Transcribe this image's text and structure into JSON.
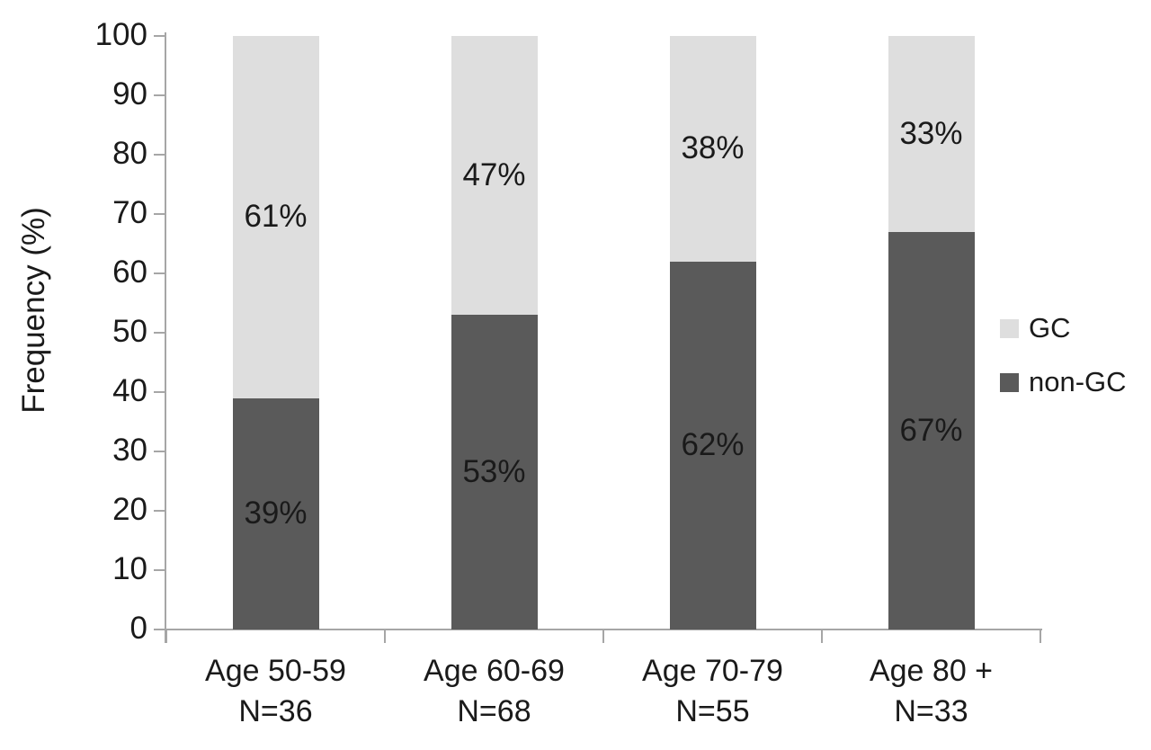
{
  "chart_data": {
    "type": "bar",
    "stacked": true,
    "title": "",
    "ylabel": "Frequency (%)",
    "xlabel": "",
    "ylim": [
      0,
      100
    ],
    "yticks": [
      0,
      10,
      20,
      30,
      40,
      50,
      60,
      70,
      80,
      90,
      100
    ],
    "grid": false,
    "value_suffix": "%",
    "categories": [
      {
        "label": "Age 50-59",
        "sublabel": "N=36"
      },
      {
        "label": "Age 60-69",
        "sublabel": "N=68"
      },
      {
        "label": "Age 70-79",
        "sublabel": "N=55"
      },
      {
        "label": "Age 80 +",
        "sublabel": "N=33"
      }
    ],
    "series": [
      {
        "name": "GC",
        "color": "#dedede",
        "values": [
          61,
          47,
          38,
          33
        ]
      },
      {
        "name": "non-GC",
        "color": "#5a5a5a",
        "values": [
          39,
          53,
          62,
          67
        ]
      }
    ],
    "stack_order_bottom_to_top": [
      "non-GC",
      "GC"
    ],
    "legend": {
      "position": "right",
      "items": [
        "GC",
        "non-GC"
      ]
    },
    "colors": {
      "axis": "#a6a6a6",
      "text": "#1a1a1a",
      "background": "#ffffff"
    }
  }
}
